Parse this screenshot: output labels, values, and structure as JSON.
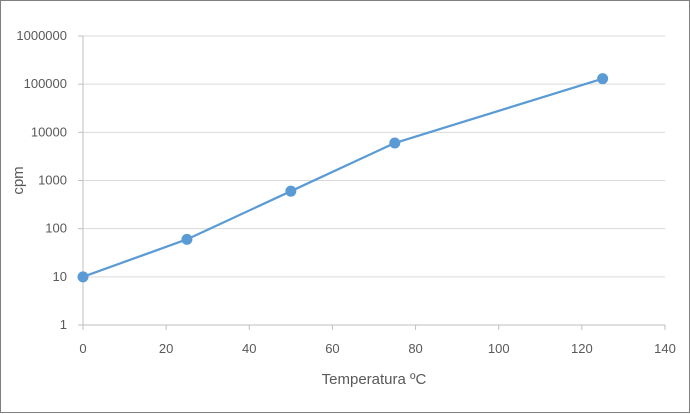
{
  "chart_data": {
    "type": "line",
    "title": "",
    "xlabel": "Temperatura ºC",
    "ylabel": "cpm",
    "xlim": [
      0,
      140
    ],
    "ylim": [
      1,
      1000000
    ],
    "yscale": "log",
    "x_ticks": [
      0,
      20,
      40,
      60,
      80,
      100,
      120,
      140
    ],
    "y_ticks": [
      1,
      10,
      100,
      1000,
      10000,
      100000,
      1000000
    ],
    "x_tick_labels": [
      "0",
      "20",
      "40",
      "60",
      "80",
      "100",
      "120",
      "140"
    ],
    "y_tick_labels": [
      "1",
      "10",
      "100",
      "1000",
      "10000",
      "100000",
      "1000000"
    ],
    "grid": "horizontal",
    "legend": "none",
    "series": [
      {
        "x": [
          0,
          25,
          50,
          75,
          125
        ],
        "y": [
          10,
          60,
          600,
          6000,
          130000
        ],
        "color": "#5b9bd5"
      }
    ]
  }
}
